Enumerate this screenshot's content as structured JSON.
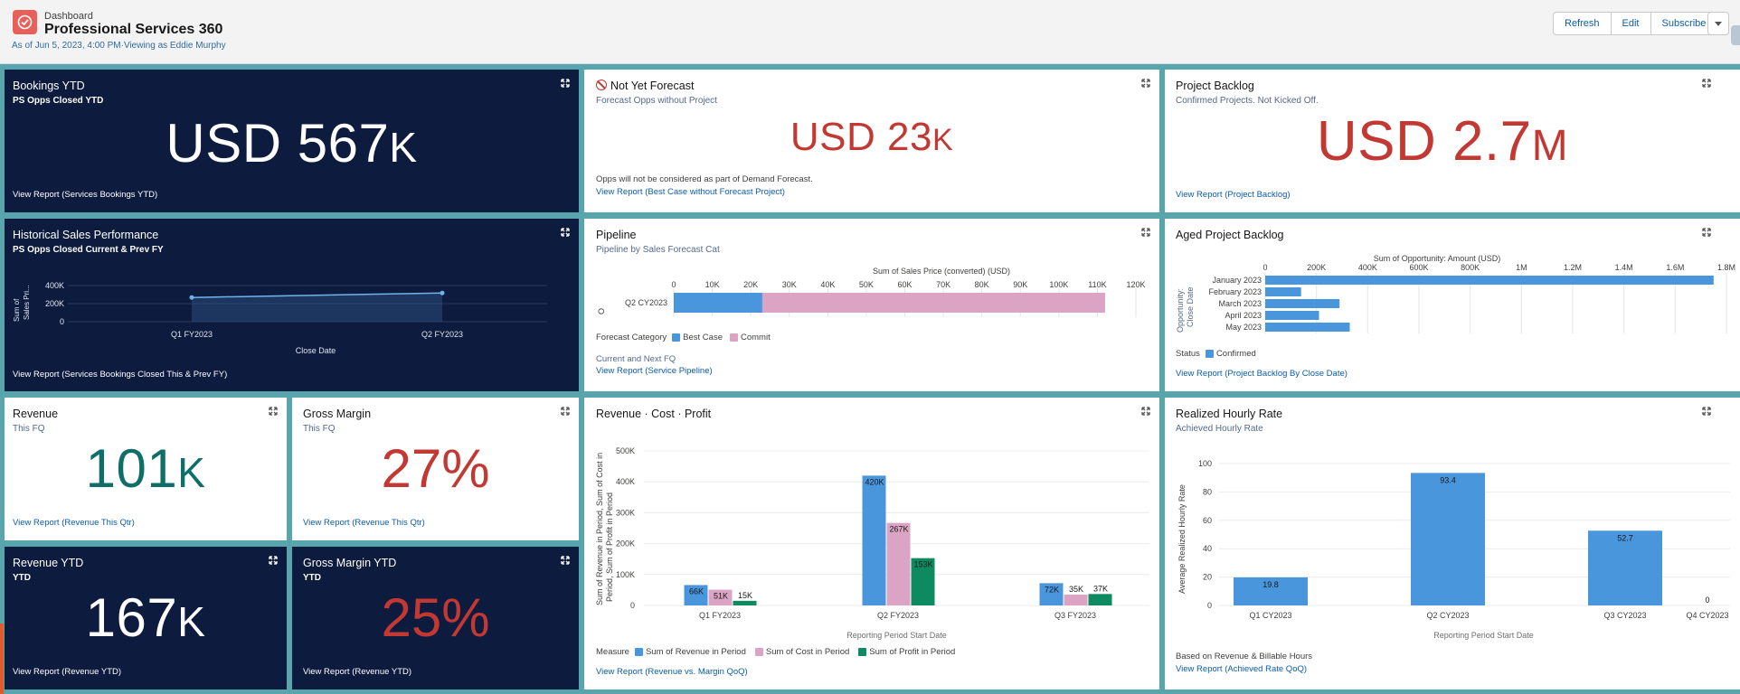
{
  "header": {
    "subtitle": "Dashboard",
    "title": "Professional Services 360",
    "as_of": "As of Jun 5, 2023, 4:00 PM·Viewing as Eddie Murphy",
    "refresh_label": "Refresh",
    "edit_label": "Edit",
    "subscribe_label": "Subscribe"
  },
  "tiles": {
    "bookings_ytd": {
      "title": "Bookings YTD",
      "subtitle": "PS Opps Closed YTD",
      "metric_prefix": "USD ",
      "metric_value": "567",
      "metric_suffix": "K",
      "link": "View Report (Services Bookings YTD)"
    },
    "not_yet_forecast": {
      "title": "Not Yet Forecast",
      "subtitle": "Forecast Opps without Project",
      "metric_prefix": "USD ",
      "metric_value": "23",
      "metric_suffix": "K",
      "note": "Opps will not be considered as part of Demand Forecast.",
      "link": "View Report (Best Case without Forecast Project)"
    },
    "project_backlog": {
      "title": "Project Backlog",
      "subtitle": "Confirmed Projects. Not Kicked Off.",
      "metric_prefix": "USD ",
      "metric_value": "2.7",
      "metric_suffix": "M",
      "link": "View Report (Project Backlog)"
    },
    "historical": {
      "title": "Historical Sales Performance",
      "subtitle": "PS Opps Closed Current & Prev FY",
      "ylabel": "Sum of Sales Pri...",
      "xlabel": "Close Date",
      "link": "View Report (Services Bookings Closed This & Prev FY)"
    },
    "pipeline": {
      "title": "Pipeline",
      "subtitle": "Pipeline by Sales Forecast Cat",
      "axis_title": "Sum of Sales Price (converted) (USD)",
      "legend_label": "Forecast Category",
      "note": "Current and Next FQ",
      "link": "View Report (Service Pipeline)"
    },
    "aged_backlog": {
      "title": "Aged Project Backlog",
      "axis_title": "Sum of Opportunity: Amount (USD)",
      "ylabel_1": "Opportunity:",
      "ylabel_2": "Close Date",
      "legend_label": "Status",
      "link": "View Report (Project Backlog By Close Date)"
    },
    "revenue": {
      "title": "Revenue",
      "subtitle": "This FQ",
      "metric_value": "101",
      "metric_suffix": "K",
      "link": "View Report (Revenue This Qtr)"
    },
    "gross_margin": {
      "title": "Gross Margin",
      "subtitle": "This FQ",
      "metric_value": "27%",
      "link": "View Report (Revenue This Qtr)"
    },
    "revenue_ytd": {
      "title": "Revenue YTD",
      "subtitle": "YTD",
      "metric_value": "167",
      "metric_suffix": "K",
      "link": "View Report (Revenue YTD)"
    },
    "gross_margin_ytd": {
      "title": "Gross Margin YTD",
      "subtitle": "YTD",
      "metric_value": "25%",
      "link": "View Report (Revenue YTD)"
    },
    "rcp": {
      "title": "Revenue · Cost · Profit",
      "ylabel_1": "Sum of Revenue in Period, Sum of Cost in",
      "ylabel_2": "Period, Sum of Profit in Period",
      "xlabel": "Reporting Period Start Date",
      "legend_label": "Measure",
      "link": "View Report (Revenue vs. Margin QoQ)"
    },
    "hourly": {
      "title": "Realized Hourly Rate",
      "subtitle": "Achieved Hourly Rate",
      "ylabel": "Average Realized Hourly Rate",
      "xlabel": "Reporting Period Start Date",
      "note": "Based on Revenue & Billable Hours",
      "link": "View Report (Achieved Rate QoQ)"
    }
  },
  "colors": {
    "accent_red": "#c23934",
    "accent_teal": "#0e6e68",
    "bar_blue": "#4a96dd",
    "bar_pink": "#dba4c4",
    "bar_green": "#0e8a60",
    "navy": "#0d1b3e"
  },
  "chart_data": [
    {
      "id": "historical",
      "type": "area",
      "categories": [
        "Q1 FY2023",
        "Q2 FY2023"
      ],
      "values": [
        268000,
        318000
      ],
      "yticks": [
        "400K",
        "200K",
        "0"
      ],
      "ylim": [
        0,
        400000
      ],
      "xlabel": "Close Date",
      "ylabel": "Sum of Sales Pri..."
    },
    {
      "id": "pipeline",
      "type": "bar",
      "orientation": "horizontal",
      "stacked": true,
      "categories": [
        "Q2 CY2023"
      ],
      "series": [
        {
          "name": "Best Case",
          "values": [
            23000
          ]
        },
        {
          "name": "Commit",
          "values": [
            89000
          ]
        }
      ],
      "xticks": [
        "0",
        "10K",
        "20K",
        "30K",
        "40K",
        "50K",
        "60K",
        "70K",
        "80K",
        "90K",
        "100K",
        "110K",
        "120K"
      ],
      "xlim": [
        0,
        120000
      ],
      "title": "Sum of Sales Price (converted) (USD)"
    },
    {
      "id": "aged_backlog",
      "type": "bar",
      "orientation": "horizontal",
      "categories": [
        "January 2023",
        "February 2023",
        "March 2023",
        "April 2023",
        "May 2023"
      ],
      "series": [
        {
          "name": "Confirmed",
          "values": [
            1750000,
            140000,
            290000,
            210000,
            330000
          ]
        }
      ],
      "xticks": [
        "0",
        "200K",
        "400K",
        "600K",
        "800K",
        "1M",
        "1.2M",
        "1.4M",
        "1.6M",
        "1.8M"
      ],
      "xlim": [
        0,
        1800000
      ],
      "title": "Sum of Opportunity: Amount (USD)"
    },
    {
      "id": "rcp",
      "type": "bar",
      "categories": [
        "Q1 FY2023",
        "Q2 FY2023",
        "Q3 FY2023"
      ],
      "series": [
        {
          "name": "Sum of Revenue in Period",
          "values": [
            66000,
            420000,
            72000
          ],
          "labels": [
            "66K",
            "420K",
            "72K"
          ]
        },
        {
          "name": "Sum of Cost in Period",
          "values": [
            51000,
            267000,
            35000
          ],
          "labels": [
            "51K",
            "267K",
            "35K"
          ]
        },
        {
          "name": "Sum of Profit in Period",
          "values": [
            15000,
            153000,
            37000
          ],
          "labels": [
            "15K",
            "153K",
            "37K"
          ]
        }
      ],
      "yticks": [
        "500K",
        "400K",
        "300K",
        "200K",
        "100K",
        "0"
      ],
      "ylim": [
        0,
        500000
      ],
      "xlabel": "Reporting Period Start Date"
    },
    {
      "id": "hourly",
      "type": "bar",
      "categories": [
        "Q1 CY2023",
        "Q2 CY2023",
        "Q3 CY2023",
        "Q4 CY2023"
      ],
      "values": [
        19.8,
        93.4,
        52.7,
        0
      ],
      "labels": [
        "19.8",
        "93.4",
        "52.7",
        "0"
      ],
      "yticks": [
        "100",
        "80",
        "60",
        "40",
        "20",
        "0"
      ],
      "ylim": [
        0,
        100
      ],
      "xlabel": "Reporting Period Start Date",
      "ylabel": "Average Realized Hourly Rate"
    }
  ]
}
